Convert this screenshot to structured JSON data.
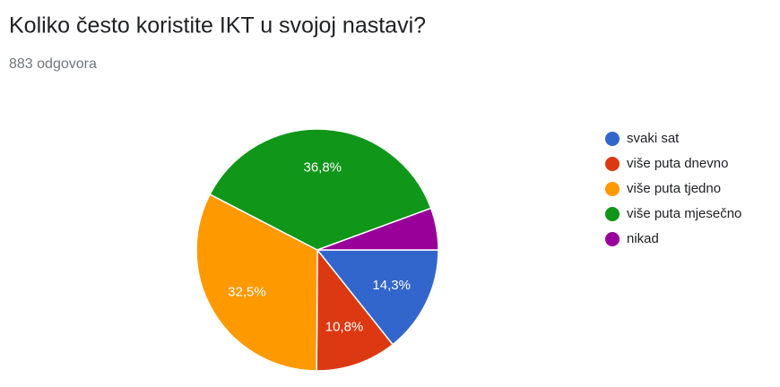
{
  "chart_data": {
    "type": "pie",
    "title": "Koliko često koristite IKT u svojoj nastavi?",
    "subtitle": "883 odgovora",
    "categories": [
      "svaki sat",
      "više puta dnevno",
      "više puta tjedno",
      "više puta mjesečno",
      "nikad"
    ],
    "values": [
      14.3,
      10.8,
      32.5,
      36.8,
      5.6
    ],
    "value_labels": [
      "14,3%",
      "10,8%",
      "32,5%",
      "36,8%",
      null
    ],
    "colors": [
      "#3366cc",
      "#dc3912",
      "#ff9900",
      "#109618",
      "#990099"
    ],
    "legend": "right"
  }
}
